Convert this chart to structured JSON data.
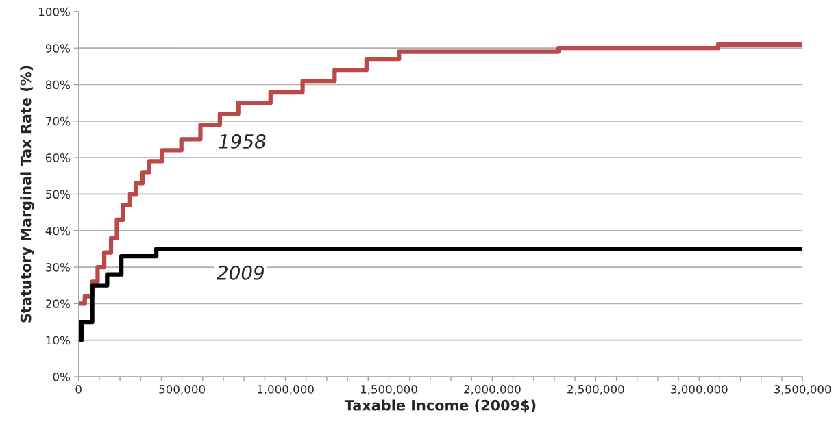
{
  "chart_data": {
    "type": "step",
    "xlabel": "Taxable Income (2009$)",
    "ylabel": "Statutory Marginal Tax Rate (%)",
    "xlim": [
      0,
      3500000
    ],
    "ylim": [
      0,
      100
    ],
    "xticks": [
      {
        "value": 0,
        "label": "0"
      },
      {
        "value": 100000,
        "label": null
      },
      {
        "value": 200000,
        "label": null
      },
      {
        "value": 300000,
        "label": null
      },
      {
        "value": 400000,
        "label": null
      },
      {
        "value": 500000,
        "label": "500,000"
      },
      {
        "value": 600000,
        "label": null
      },
      {
        "value": 700000,
        "label": null
      },
      {
        "value": 800000,
        "label": null
      },
      {
        "value": 900000,
        "label": null
      },
      {
        "value": 1000000,
        "label": "1,000,000"
      },
      {
        "value": 1100000,
        "label": null
      },
      {
        "value": 1200000,
        "label": null
      },
      {
        "value": 1300000,
        "label": null
      },
      {
        "value": 1400000,
        "label": null
      },
      {
        "value": 1500000,
        "label": "1,500,000"
      },
      {
        "value": 1600000,
        "label": null
      },
      {
        "value": 1700000,
        "label": null
      },
      {
        "value": 1800000,
        "label": null
      },
      {
        "value": 1900000,
        "label": null
      },
      {
        "value": 2000000,
        "label": "2,000,000"
      },
      {
        "value": 2100000,
        "label": null
      },
      {
        "value": 2200000,
        "label": null
      },
      {
        "value": 2300000,
        "label": null
      },
      {
        "value": 2400000,
        "label": null
      },
      {
        "value": 2500000,
        "label": "2,500,000"
      },
      {
        "value": 2600000,
        "label": null
      },
      {
        "value": 2700000,
        "label": null
      },
      {
        "value": 2800000,
        "label": null
      },
      {
        "value": 2900000,
        "label": null
      },
      {
        "value": 3000000,
        "label": "3,000,000"
      },
      {
        "value": 3100000,
        "label": null
      },
      {
        "value": 3200000,
        "label": null
      },
      {
        "value": 3300000,
        "label": null
      },
      {
        "value": 3400000,
        "label": null
      },
      {
        "value": 3500000,
        "label": "3,500,000"
      }
    ],
    "yticks": [
      {
        "value": 0,
        "label": "0%"
      },
      {
        "value": 10,
        "label": "10%"
      },
      {
        "value": 20,
        "label": "20%"
      },
      {
        "value": 30,
        "label": "30%"
      },
      {
        "value": 40,
        "label": "40%"
      },
      {
        "value": 50,
        "label": "50%"
      },
      {
        "value": 60,
        "label": "60%"
      },
      {
        "value": 70,
        "label": "70%"
      },
      {
        "value": 80,
        "label": "80%"
      },
      {
        "value": 90,
        "label": "90%"
      },
      {
        "value": 100,
        "label": "100%"
      }
    ],
    "grid": "y",
    "legend": false,
    "series": [
      {
        "color": "#b94a48",
        "x": [
          0,
          30000,
          66000,
          92000,
          124000,
          157000,
          185000,
          215000,
          249000,
          278000,
          309000,
          342000,
          403000,
          497000,
          589000,
          683000,
          772000,
          928000,
          1083000,
          1238000,
          1392000,
          1549000,
          2320000,
          3092000,
          3500000
        ],
        "values": [
          20,
          22,
          26,
          30,
          34,
          38,
          43,
          47,
          50,
          53,
          56,
          59,
          62,
          65,
          69,
          72,
          75,
          78,
          81,
          84,
          87,
          89,
          90,
          91,
          91
        ]
      },
      {
        "color": "#000000",
        "x": [
          0,
          14000,
          66000,
          138000,
          207000,
          376000,
          3500000
        ],
        "values": [
          10,
          15,
          25,
          28,
          33,
          35,
          35
        ]
      }
    ],
    "annotations": [
      "1958",
      "2009"
    ]
  }
}
